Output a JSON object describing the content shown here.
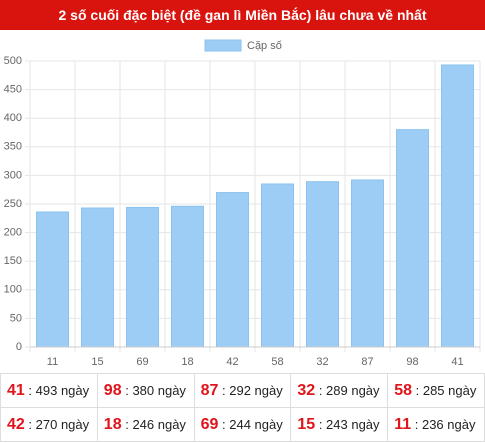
{
  "chart_data": {
    "type": "bar",
    "title": "2 số cuối đặc biệt (đề gan lì Miền Bắc) lâu chưa về nhất",
    "categories": [
      "11",
      "15",
      "69",
      "18",
      "42",
      "58",
      "32",
      "87",
      "98",
      "41"
    ],
    "series": [
      {
        "name": "Cặp số",
        "color": "#9dcdf4",
        "values": [
          236,
          243,
          244,
          246,
          270,
          285,
          289,
          292,
          380,
          493
        ]
      }
    ],
    "ylim": [
      0,
      500
    ],
    "yticks": [
      0,
      50,
      100,
      150,
      200,
      250,
      300,
      350,
      400,
      450,
      500
    ],
    "grid": true,
    "legend": "top"
  },
  "table": {
    "rows": [
      [
        {
          "pair": "41",
          "days": ": 493 ngày"
        },
        {
          "pair": "98",
          "days": ": 380 ngày"
        },
        {
          "pair": "87",
          "days": ": 292 ngày"
        },
        {
          "pair": "32",
          "days": ": 289 ngày"
        },
        {
          "pair": "58",
          "days": ": 285 ngày"
        }
      ],
      [
        {
          "pair": "42",
          "days": ": 270 ngày"
        },
        {
          "pair": "18",
          "days": ": 246 ngày"
        },
        {
          "pair": "69",
          "days": ": 244 ngày"
        },
        {
          "pair": "15",
          "days": ": 243 ngày"
        },
        {
          "pair": "11",
          "days": ": 236 ngày"
        }
      ]
    ]
  }
}
